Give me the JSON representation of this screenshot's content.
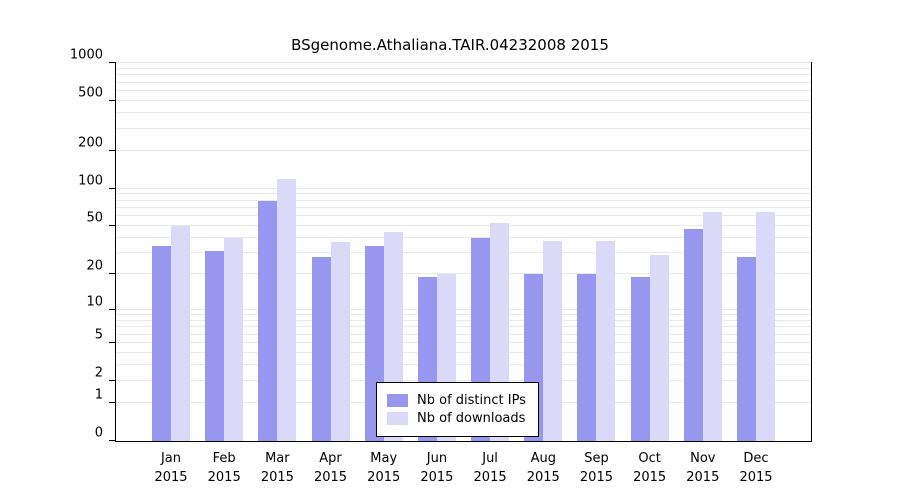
{
  "title": "BSgenome.Athaliana.TAIR.04232008 2015",
  "chart_data": {
    "type": "bar",
    "title": "BSgenome.Athaliana.TAIR.04232008 2015",
    "categories": [
      "Jan",
      "Feb",
      "Mar",
      "Apr",
      "May",
      "Jun",
      "Jul",
      "Aug",
      "Sep",
      "Oct",
      "Nov",
      "Dec"
    ],
    "category_year": "2015",
    "series": [
      {
        "name": "Nb of distinct IPs",
        "color": "#9797f0",
        "values": [
          34,
          31,
          80,
          28,
          34,
          19,
          40,
          20,
          20,
          19,
          47,
          28
        ]
      },
      {
        "name": "Nb of downloads",
        "color": "#dadaf8",
        "values": [
          50,
          40,
          120,
          37,
          45,
          20,
          53,
          38,
          38,
          29,
          65,
          65
        ]
      }
    ],
    "yticks": [
      0,
      1,
      2,
      5,
      10,
      20,
      50,
      100,
      200,
      500,
      1000
    ],
    "ylim": [
      0,
      1000
    ],
    "yscale": "log1p",
    "grid": true,
    "grid_color": "#e9e9e9",
    "legend_position": "bottom-center",
    "xlabel": "",
    "ylabel": ""
  }
}
